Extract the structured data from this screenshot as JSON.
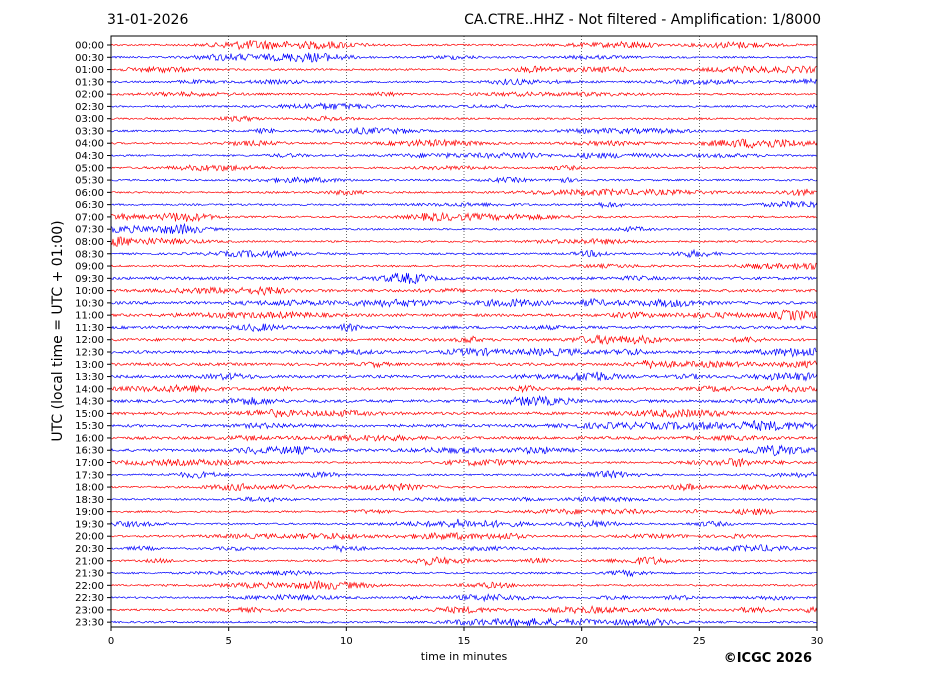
{
  "chart_data": {
    "type": "line",
    "date": "31-01-2026",
    "title": "CA.CTRE..HHZ - Not filtered - Amplification: 1/8000",
    "xlabel": "time in minutes",
    "ylabel": "UTC (local time = UTC + 01:00)",
    "xlim": [
      0,
      30
    ],
    "x_ticks": [
      "0",
      "5",
      "10",
      "15",
      "20",
      "25",
      "30"
    ],
    "x_tick_values": [
      0,
      5,
      10,
      15,
      20,
      25,
      30
    ],
    "grid": true,
    "trace_colors": [
      "#ff0000",
      "#0000ff"
    ],
    "rows": [
      "00:00",
      "00:30",
      "01:00",
      "01:30",
      "02:00",
      "02:30",
      "03:00",
      "03:30",
      "04:00",
      "04:30",
      "05:00",
      "05:30",
      "06:00",
      "06:30",
      "07:00",
      "07:30",
      "08:00",
      "08:30",
      "09:00",
      "09:30",
      "10:00",
      "10:30",
      "11:00",
      "11:30",
      "12:00",
      "12:30",
      "13:00",
      "13:30",
      "14:00",
      "14:30",
      "15:00",
      "15:30",
      "16:00",
      "16:30",
      "17:00",
      "17:30",
      "18:00",
      "18:30",
      "19:00",
      "19:30",
      "20:00",
      "20:30",
      "21:00",
      "21:30",
      "22:00",
      "22:30",
      "23:00",
      "23:30"
    ]
  },
  "copyright": "©ICGC 2026"
}
